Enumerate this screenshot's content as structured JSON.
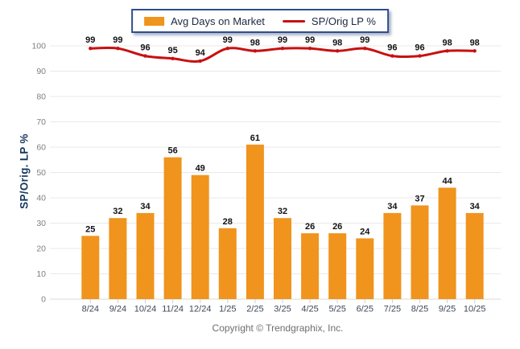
{
  "legend": {
    "bar_label": "Avg Days on Market",
    "line_label": "SP/Orig LP %"
  },
  "y_axis_title": "SP/Orig. LP %",
  "copyright": "Copyright © Trendgraphix, Inc.",
  "colors": {
    "bar": "#F0941E",
    "line": "#C81010",
    "legend_border": "#2D4E8E",
    "grid": "#E9E9E9",
    "axis_line": "#D8D8D8",
    "y_tick_text": "#808080",
    "x_label_text": "#3D4859",
    "value_label_text": "#121212",
    "y_title_text": "#17375E",
    "copyright_text": "#6E6E6E"
  },
  "chart_data": {
    "type": "bar",
    "categories": [
      "8/24",
      "9/24",
      "10/24",
      "11/24",
      "12/24",
      "1/25",
      "2/25",
      "3/25",
      "4/25",
      "5/25",
      "6/25",
      "7/25",
      "8/25",
      "9/25",
      "10/25"
    ],
    "series": [
      {
        "name": "Avg Days on Market",
        "type": "bar",
        "color": "#F0941E",
        "values": [
          25,
          32,
          34,
          56,
          49,
          28,
          61,
          32,
          26,
          26,
          24,
          34,
          37,
          44,
          34
        ]
      },
      {
        "name": "SP/Orig LP %",
        "type": "line",
        "color": "#C81010",
        "values": [
          99,
          99,
          96,
          95,
          94,
          99,
          98,
          99,
          99,
          98,
          99,
          96,
          96,
          98,
          98
        ]
      }
    ],
    "title": "",
    "xlabel": "",
    "ylabel": "SP/Orig. LP %",
    "ylim": [
      0,
      100
    ],
    "ytick_step": 10,
    "grid": true,
    "legend_position": "top",
    "value_labels": true
  }
}
